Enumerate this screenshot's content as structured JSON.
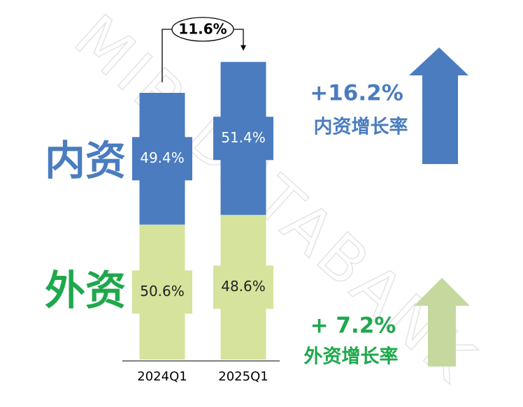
{
  "chart_data": {
    "type": "stacked-bar",
    "categories": [
      "2024Q1",
      "2025Q1"
    ],
    "series": [
      {
        "name": "内资",
        "color": "#4a7cbf",
        "values": [
          49.4,
          51.4
        ],
        "value_labels": [
          "49.4%",
          "51.4%"
        ]
      },
      {
        "name": "外资",
        "color": "#d5e39c",
        "values": [
          50.6,
          48.6
        ],
        "value_labels": [
          "50.6%",
          "48.6%"
        ]
      }
    ],
    "total_growth": {
      "value": 11.6,
      "label": "11.6%"
    },
    "annotations": [
      {
        "text": "+16.2%",
        "subtext": "内资增长率",
        "color": "#4a7cbf"
      },
      {
        "text": "+ 7.2%",
        "subtext": "外资增长率",
        "color": "#1ea84c"
      }
    ],
    "watermark": "MIR DATABANK"
  }
}
